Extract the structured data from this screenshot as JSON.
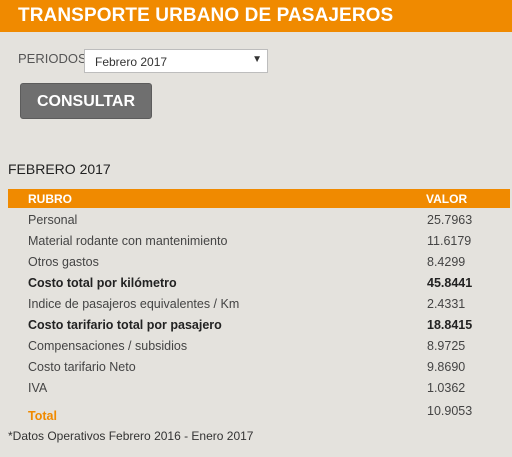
{
  "header": {
    "title": "TRANSPORTE URBANO DE PASAJEROS"
  },
  "filter": {
    "label": "PERIODOS",
    "selected": "Febrero 2017",
    "button_label": "CONSULTAR"
  },
  "section_title": "FEBRERO 2017",
  "table": {
    "columns": [
      "RUBRO",
      "VALOR"
    ],
    "rows": [
      {
        "rubro": "Personal",
        "valor": "25.7963"
      },
      {
        "rubro": "Material rodante con mantenimiento",
        "valor": "11.6179"
      },
      {
        "rubro": "Otros gastos",
        "valor": "8.4299"
      },
      {
        "rubro": "Costo total por kilómetro",
        "valor": "45.8441"
      },
      {
        "rubro": "Indice de pasajeros equivalentes / Km",
        "valor": "2.4331"
      },
      {
        "rubro": "Costo tarifario total por pasajero",
        "valor": "18.8415"
      },
      {
        "rubro": "Compensaciones / subsidios",
        "valor": "8.9725"
      },
      {
        "rubro": "Costo tarifario Neto",
        "valor": "9.8690"
      },
      {
        "rubro": "IVA",
        "valor": "1.0362"
      },
      {
        "rubro": "Total",
        "valor": "10.9053"
      }
    ]
  },
  "footnote": "*Datos Operativos Febrero 2016 - Enero 2017",
  "colors": {
    "accent": "#f08a00",
    "button": "#6f6f6f",
    "background": "#e4e2dd"
  }
}
